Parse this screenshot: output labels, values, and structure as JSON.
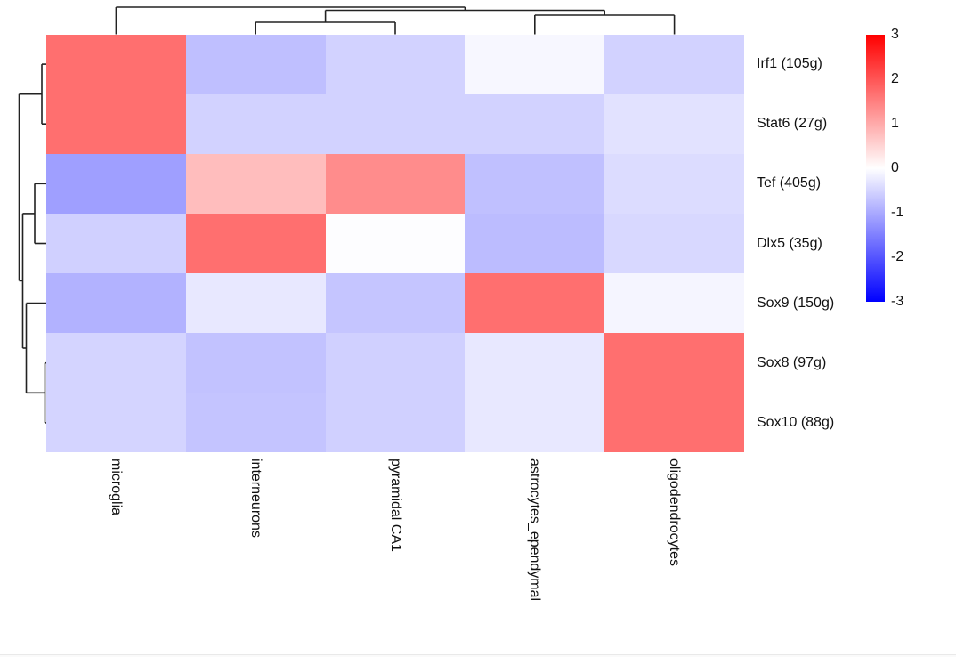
{
  "page": {
    "background": "#ffffff",
    "footer_border_color": "#e9e9e9",
    "footer_fill_color": "#fafafa"
  },
  "chart_data": {
    "type": "heatmap",
    "title": "",
    "columns": [
      "microglia",
      "interneurons",
      "pyramidal CA1",
      "astrocytes_ependymal",
      "oligodendrocytes"
    ],
    "rows": [
      "Irf1 (105g)",
      "Stat6 (27g)",
      "Tef (405g)",
      "Dlx5 (35g)",
      "Sox9 (150g)",
      "Sox8 (97g)",
      "Sox10 (88g)"
    ],
    "values": [
      [
        1.7,
        -0.75,
        -0.53,
        -0.09,
        -0.53
      ],
      [
        1.7,
        -0.53,
        -0.53,
        -0.53,
        -0.34
      ],
      [
        -1.13,
        0.78,
        1.35,
        -0.74,
        -0.41
      ],
      [
        -0.55,
        1.7,
        -0.02,
        -0.79,
        -0.46
      ],
      [
        -0.91,
        -0.27,
        -0.68,
        1.7,
        -0.12
      ],
      [
        -0.51,
        -0.72,
        -0.55,
        -0.27,
        1.7
      ],
      [
        -0.51,
        -0.69,
        -0.55,
        -0.27,
        1.7
      ]
    ],
    "value_range": [
      -3,
      3
    ],
    "colormap": {
      "negative": "#0000ff",
      "zero": "#ffffff",
      "positive": "#ff0000"
    },
    "legend": {
      "position": "right",
      "tick_labels": [
        "3",
        "2",
        "1",
        "0",
        "-1",
        "-2",
        "-3"
      ],
      "tick_values": [
        3,
        2,
        1,
        0,
        -1,
        -2,
        -3
      ]
    },
    "dendrogram_line_color": "#222222",
    "col_dendrogram_segments": [
      [
        130.4,
        38.5,
        130.4,
        8
      ],
      [
        287.2,
        38.5,
        287.2,
        25
      ],
      [
        444,
        38.5,
        444,
        25
      ],
      [
        287.2,
        25,
        444,
        25
      ],
      [
        600.8,
        38.5,
        600.8,
        17
      ],
      [
        757.6,
        38.5,
        757.6,
        17
      ],
      [
        600.8,
        17,
        757.6,
        17
      ],
      [
        365.6,
        25,
        365.6,
        11.5
      ],
      [
        679.2,
        17,
        679.2,
        11.5
      ],
      [
        365.6,
        11.5,
        679.2,
        11.5
      ],
      [
        522.4,
        11.5,
        522.4,
        8
      ],
      [
        130.4,
        8,
        522.4,
        8
      ]
    ],
    "row_dendrogram_segments": [
      [
        52,
        72.1,
        47,
        72.1
      ],
      [
        52,
        139.2,
        47,
        139.2
      ],
      [
        47,
        72.1,
        47,
        139.2
      ],
      [
        52,
        206.3,
        39,
        206.3
      ],
      [
        52,
        273.5,
        39,
        273.5
      ],
      [
        39,
        206.3,
        39,
        273.5
      ],
      [
        52,
        407.7,
        50.5,
        407.7
      ],
      [
        52,
        474.9,
        50.5,
        474.9
      ],
      [
        50.5,
        407.7,
        50.5,
        474.9
      ],
      [
        52,
        340.6,
        29.5,
        340.6
      ],
      [
        50.5,
        441.3,
        29.5,
        441.3
      ],
      [
        29.5,
        340.6,
        29.5,
        441.3
      ],
      [
        39,
        239.9,
        25.5,
        239.9
      ],
      [
        29.5,
        391,
        25.5,
        391
      ],
      [
        25.5,
        239.9,
        25.5,
        391
      ],
      [
        47,
        105.7,
        21.5,
        105.7
      ],
      [
        25.5,
        315.4,
        21.5,
        315.4
      ],
      [
        21.5,
        105.7,
        21.5,
        315.4
      ]
    ]
  }
}
